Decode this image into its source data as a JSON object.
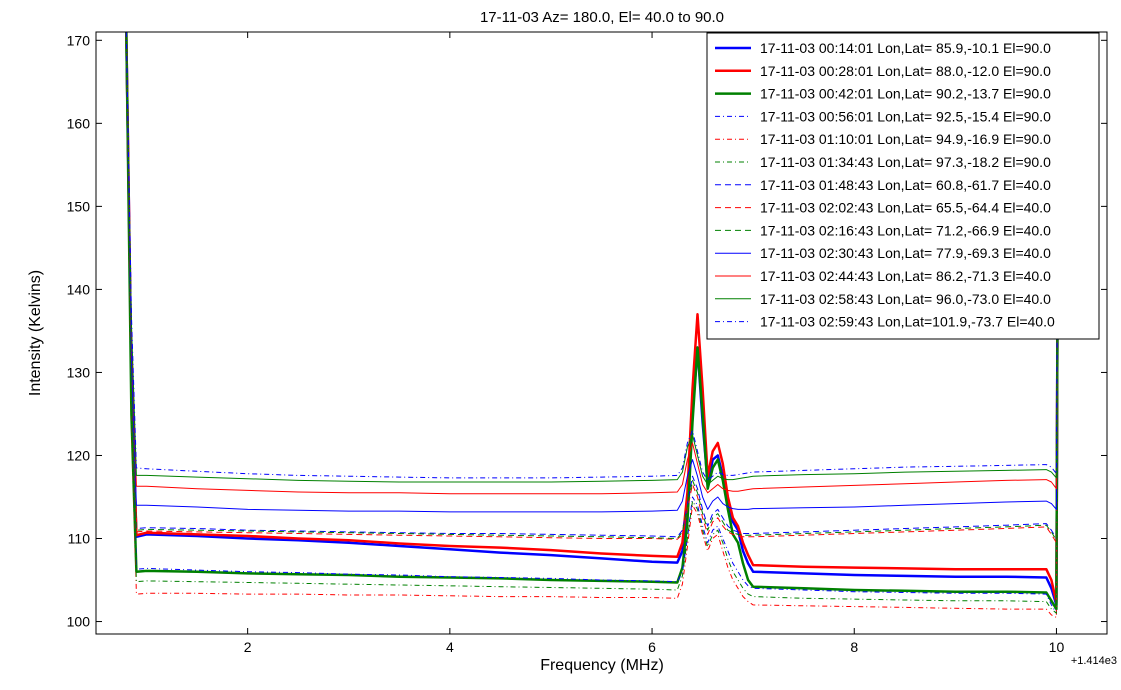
{
  "chart_data": {
    "type": "line",
    "title": "17-11-03    Az= 180.0, El=  40.0 to   90.0",
    "xlabel": "Frequency (MHz)",
    "ylabel": "Intensity (Kelvins)",
    "x_offset_label": "+1.414e3",
    "xlim": [
      0.5,
      10.5
    ],
    "ylim": [
      98.5,
      171
    ],
    "xticks": [
      2,
      4,
      6,
      8,
      10
    ],
    "yticks": [
      100,
      110,
      120,
      130,
      140,
      150,
      160,
      170
    ],
    "grid": false,
    "legend_position": "top-right",
    "x": [
      0.8,
      0.85,
      0.9,
      1.0,
      1.5,
      2.0,
      2.5,
      3.0,
      3.5,
      4.0,
      4.5,
      5.0,
      5.5,
      6.0,
      6.25,
      6.3,
      6.35,
      6.4,
      6.45,
      6.5,
      6.55,
      6.6,
      6.65,
      6.7,
      6.75,
      6.8,
      6.85,
      6.9,
      6.95,
      7.0,
      7.5,
      8.0,
      8.5,
      9.0,
      9.5,
      9.9,
      9.95,
      10.0,
      10.02
    ],
    "series": [
      {
        "name": "17-11-03 00:14:01 Lon,Lat= 85.9,-10.1 El=90.0",
        "color": "#0000ff",
        "style": "solid",
        "width": 2.5,
        "values": [
          171,
          130,
          110.2,
          110.5,
          110.3,
          110.0,
          109.8,
          109.5,
          109.1,
          108.7,
          108.3,
          108.0,
          107.6,
          107.2,
          107.1,
          108.5,
          114.0,
          125.0,
          133.0,
          124.0,
          116.5,
          119.5,
          120.0,
          117.5,
          114.5,
          112.0,
          111.0,
          108.5,
          107.0,
          106.0,
          105.8,
          105.6,
          105.5,
          105.4,
          105.4,
          105.3,
          104.0,
          102.0,
          171
        ]
      },
      {
        "name": "17-11-03 00:28:01 Lon,Lat= 88.0,-12.0 El=90.0",
        "color": "#ff0000",
        "style": "solid",
        "width": 2.5,
        "values": [
          171,
          130,
          110.4,
          110.7,
          110.5,
          110.3,
          110.0,
          109.8,
          109.4,
          109.1,
          108.9,
          108.6,
          108.2,
          107.9,
          107.8,
          109.5,
          115.5,
          128.0,
          137.0,
          128.0,
          117.5,
          120.5,
          121.5,
          119.0,
          115.0,
          112.5,
          111.5,
          109.5,
          108.0,
          106.8,
          106.6,
          106.5,
          106.4,
          106.3,
          106.3,
          106.3,
          105.0,
          102.3,
          171
        ]
      },
      {
        "name": "17-11-03 00:42:01 Lon,Lat= 90.2,-13.7 El=90.0",
        "color": "#008000",
        "style": "solid",
        "width": 2.5,
        "values": [
          171,
          125,
          106.0,
          106.1,
          106.0,
          105.8,
          105.7,
          105.6,
          105.4,
          105.3,
          105.2,
          105.0,
          104.9,
          104.8,
          104.7,
          106.5,
          112.0,
          124.0,
          133.0,
          125.0,
          116.0,
          118.5,
          119.5,
          117.0,
          113.5,
          110.5,
          109.5,
          107.0,
          105.0,
          104.2,
          104.0,
          103.8,
          103.7,
          103.6,
          103.6,
          103.5,
          102.5,
          101.5,
          171
        ]
      },
      {
        "name": "17-11-03 00:56:01 Lon,Lat= 92.5,-15.4 El=90.0",
        "color": "#0000ff",
        "style": "dashdot",
        "width": 1,
        "values": [
          171,
          128,
          106.3,
          106.4,
          106.2,
          106.0,
          105.9,
          105.7,
          105.6,
          105.4,
          105.3,
          105.2,
          105.0,
          104.9,
          104.8,
          106.0,
          110.0,
          115.0,
          114.0,
          111.5,
          109.5,
          111.0,
          111.5,
          110.0,
          108.5,
          107.0,
          106.0,
          105.0,
          104.3,
          104.0,
          103.8,
          103.6,
          103.5,
          103.4,
          103.4,
          103.3,
          102.0,
          101.0,
          171
        ]
      },
      {
        "name": "17-11-03 01:10:01 Lon,Lat= 94.9,-16.9 El=90.0",
        "color": "#ff0000",
        "style": "dashdot",
        "width": 1,
        "values": [
          171,
          125,
          103.3,
          103.4,
          103.4,
          103.3,
          103.3,
          103.2,
          103.2,
          103.1,
          103.0,
          103.0,
          102.9,
          102.9,
          102.8,
          104.5,
          109.0,
          114.0,
          113.0,
          110.5,
          108.5,
          110.0,
          110.5,
          108.5,
          106.5,
          105.0,
          104.0,
          103.0,
          102.4,
          102.0,
          101.9,
          101.8,
          101.7,
          101.6,
          101.5,
          101.5,
          100.8,
          100.5,
          171
        ]
      },
      {
        "name": "17-11-03 01:34:43 Lon,Lat= 97.3,-18.2 El=90.0",
        "color": "#008000",
        "style": "dashdot",
        "width": 1,
        "values": [
          171,
          126,
          104.8,
          104.9,
          104.8,
          104.7,
          104.6,
          104.5,
          104.4,
          104.3,
          104.2,
          104.1,
          104.0,
          103.9,
          103.8,
          105.5,
          110.0,
          114.5,
          113.5,
          111.0,
          109.0,
          110.5,
          111.0,
          109.5,
          107.5,
          106.0,
          105.0,
          104.0,
          103.3,
          103.0,
          102.8,
          102.7,
          102.6,
          102.5,
          102.5,
          102.4,
          101.5,
          101.0,
          171
        ]
      },
      {
        "name": "17-11-03 01:48:43 Lon,Lat= 60.8,-61.7 El=40.0",
        "color": "#0000ff",
        "style": "dashed",
        "width": 1,
        "values": [
          171,
          130,
          111.2,
          111.3,
          111.2,
          111.0,
          110.9,
          110.8,
          110.7,
          110.6,
          110.6,
          110.5,
          110.4,
          110.3,
          110.2,
          111.0,
          114.0,
          117.5,
          116.0,
          113.5,
          111.5,
          113.0,
          113.5,
          112.5,
          111.5,
          111.0,
          110.8,
          110.6,
          110.6,
          110.6,
          110.8,
          111.0,
          111.2,
          111.4,
          111.6,
          111.8,
          111.0,
          110.0,
          171
        ]
      },
      {
        "name": "17-11-03 02:02:43 Lon,Lat= 65.5,-64.4 El=40.0",
        "color": "#ff0000",
        "style": "dashed",
        "width": 1,
        "values": [
          171,
          130,
          110.8,
          110.9,
          110.8,
          110.7,
          110.6,
          110.5,
          110.4,
          110.3,
          110.2,
          110.1,
          110.0,
          110.0,
          109.9,
          110.5,
          113.5,
          116.5,
          115.0,
          112.5,
          110.5,
          112.0,
          112.5,
          111.5,
          110.8,
          110.5,
          110.3,
          110.2,
          110.2,
          110.2,
          110.4,
          110.6,
          110.8,
          111.0,
          111.2,
          111.4,
          110.5,
          109.5,
          171
        ]
      },
      {
        "name": "17-11-03 02:16:43 Lon,Lat= 71.2,-66.9 El=40.0",
        "color": "#008000",
        "style": "dashed",
        "width": 1,
        "values": [
          171,
          130,
          111.0,
          111.1,
          111.0,
          110.9,
          110.8,
          110.7,
          110.6,
          110.5,
          110.4,
          110.3,
          110.2,
          110.1,
          110.0,
          110.8,
          113.8,
          117.0,
          115.5,
          113.0,
          111.0,
          112.5,
          113.0,
          112.0,
          111.0,
          110.7,
          110.5,
          110.4,
          110.4,
          110.4,
          110.6,
          110.8,
          111.0,
          111.2,
          111.4,
          111.6,
          110.8,
          109.8,
          171
        ]
      },
      {
        "name": "17-11-03 02:30:43 Lon,Lat= 77.9,-69.3 El=40.0",
        "color": "#0000ff",
        "style": "solid",
        "width": 1,
        "values": [
          171,
          132,
          114.0,
          114.0,
          113.8,
          113.5,
          113.4,
          113.3,
          113.3,
          113.2,
          113.2,
          113.2,
          113.2,
          113.3,
          113.4,
          114.5,
          117.5,
          119.5,
          117.5,
          115.0,
          113.5,
          114.5,
          115.0,
          114.2,
          113.8,
          113.6,
          113.5,
          113.5,
          113.5,
          113.6,
          113.7,
          113.8,
          114.0,
          114.2,
          114.4,
          114.5,
          114.2,
          113.5,
          171
        ]
      },
      {
        "name": "17-11-03 02:44:43 Lon,Lat= 86.2,-71.3 El=40.0",
        "color": "#ff0000",
        "style": "solid",
        "width": 1,
        "values": [
          171,
          135,
          116.3,
          116.3,
          116.0,
          115.8,
          115.6,
          115.5,
          115.5,
          115.4,
          115.4,
          115.4,
          115.4,
          115.5,
          115.6,
          116.5,
          119.5,
          121.5,
          119.0,
          116.5,
          115.5,
          116.0,
          116.5,
          116.0,
          115.8,
          115.7,
          115.7,
          115.8,
          115.9,
          116.0,
          116.2,
          116.4,
          116.6,
          116.8,
          117.0,
          117.1,
          116.8,
          116.0,
          171
        ]
      },
      {
        "name": "17-11-03 02:58:43 Lon,Lat= 96.0,-73.0 El=40.0",
        "color": "#008000",
        "style": "solid",
        "width": 1,
        "values": [
          171,
          136,
          117.6,
          117.6,
          117.4,
          117.2,
          117.0,
          116.9,
          116.8,
          116.8,
          116.8,
          116.8,
          116.9,
          117.0,
          117.1,
          118.0,
          121.0,
          122.5,
          120.0,
          117.5,
          116.5,
          117.0,
          117.5,
          117.2,
          117.1,
          117.1,
          117.2,
          117.3,
          117.4,
          117.5,
          117.7,
          117.8,
          118.0,
          118.1,
          118.2,
          118.3,
          118.0,
          117.3,
          171
        ]
      },
      {
        "name": "17-11-03 02:59:43 Lon,Lat=101.9,-73.7 El=40.0",
        "color": "#0000ff",
        "style": "dashdot",
        "width": 1,
        "values": [
          171,
          137,
          118.5,
          118.4,
          118.1,
          117.8,
          117.6,
          117.5,
          117.4,
          117.3,
          117.3,
          117.3,
          117.4,
          117.5,
          117.6,
          118.5,
          121.5,
          123.0,
          120.5,
          118.0,
          117.0,
          117.5,
          118.0,
          117.7,
          117.6,
          117.6,
          117.7,
          117.8,
          117.9,
          118.0,
          118.2,
          118.4,
          118.6,
          118.7,
          118.8,
          118.9,
          118.6,
          117.8,
          171
        ]
      }
    ]
  }
}
